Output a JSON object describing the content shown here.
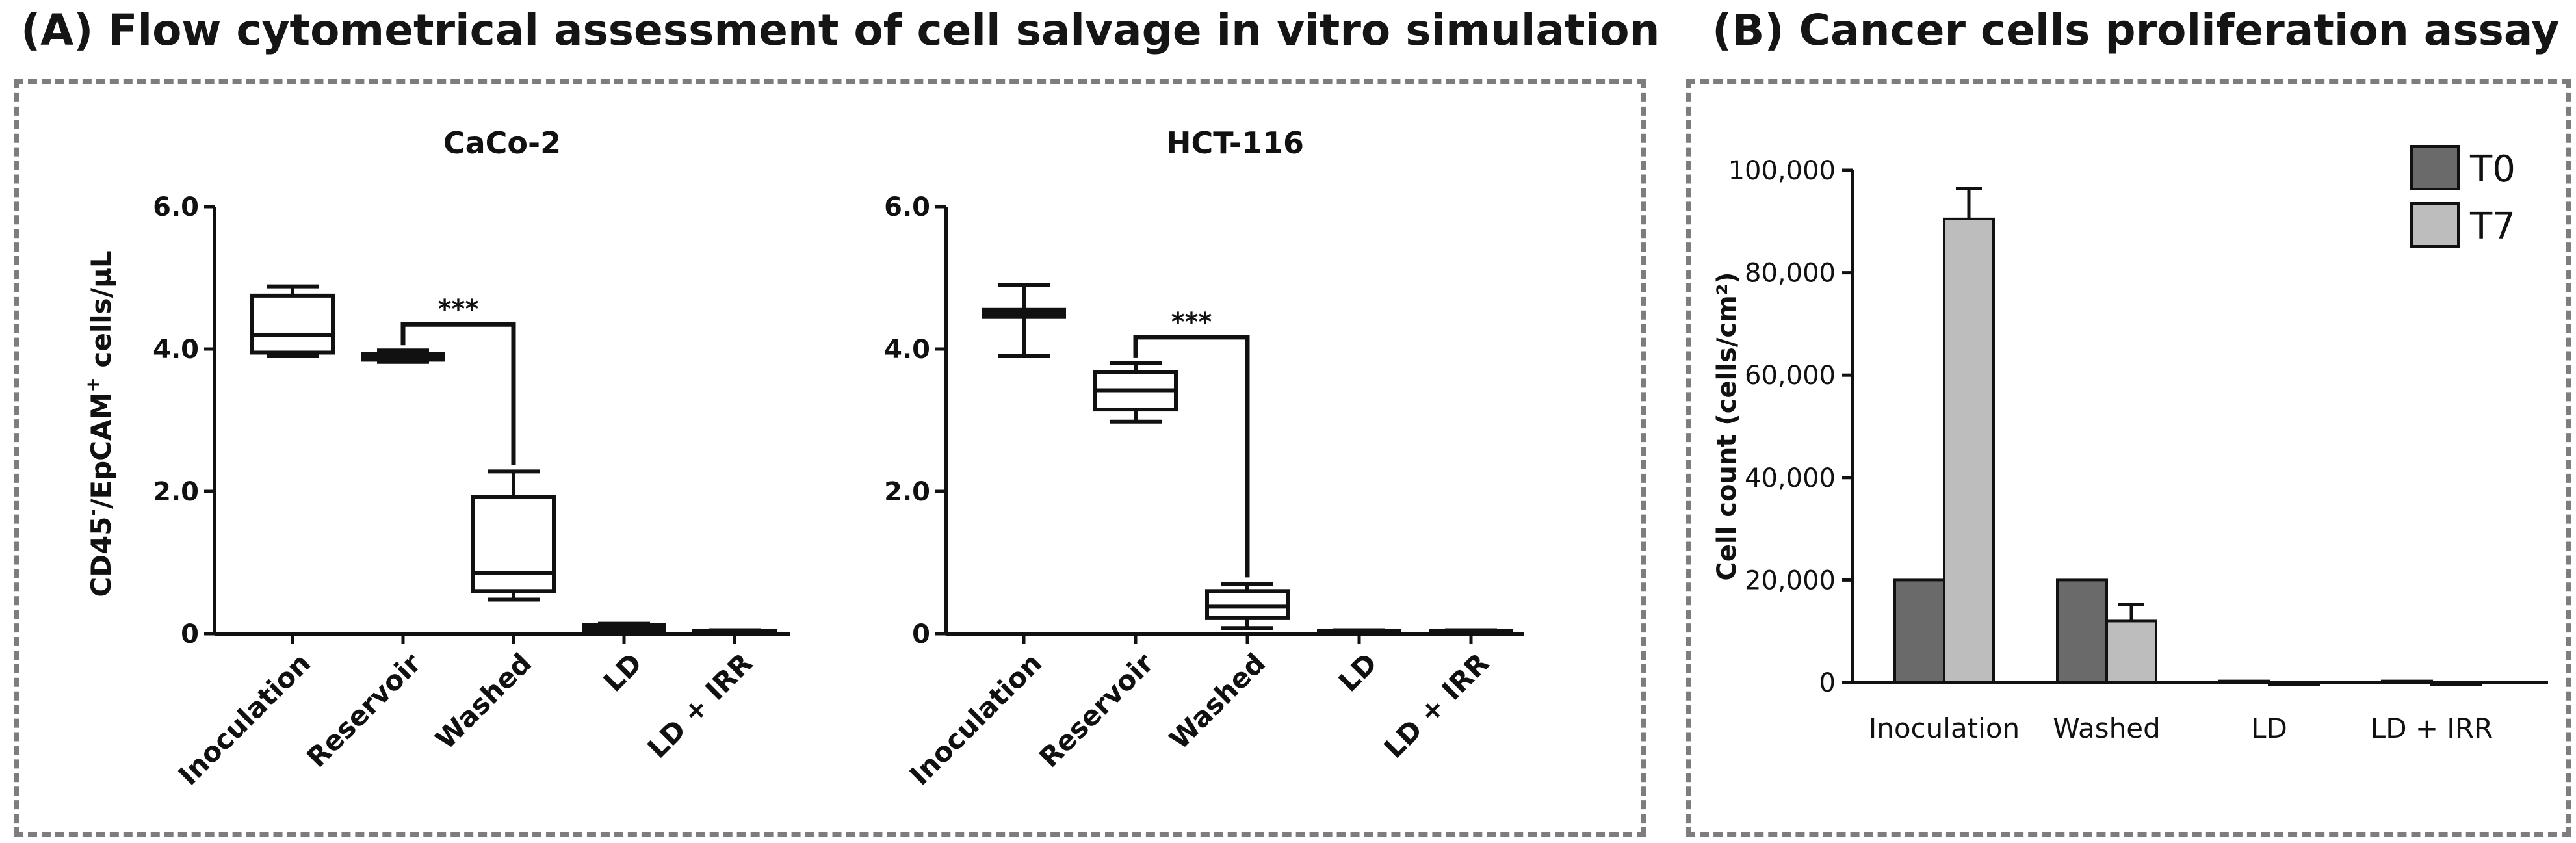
{
  "panel_a": {
    "heading": "(A) Flow cytometrical assessment of cell salvage in vitro simulation",
    "ylabel_parts": [
      "CD45",
      "-",
      "/EpCAM",
      "+",
      " cells/µL"
    ]
  },
  "panel_b": {
    "heading": "(B) Cancer cells proliferation assay"
  },
  "chart_data": [
    {
      "type": "box",
      "title": "CaCo-2",
      "ylabel": "CD45-/EpCAM+ cells/µL",
      "categories": [
        "Inoculation",
        "Reservoir",
        "Washed",
        "LD",
        "LD + IRR"
      ],
      "yticks": [
        "0",
        "2.0",
        "4.0",
        "6.0"
      ],
      "ylim": [
        0,
        6
      ],
      "boxes": [
        {
          "min": 3.9,
          "q1": 3.95,
          "median": 4.2,
          "q3": 4.75,
          "max": 4.88
        },
        {
          "min": 3.82,
          "q1": 3.85,
          "median": 3.9,
          "q3": 3.93,
          "max": 3.98
        },
        {
          "min": 0.48,
          "q1": 0.6,
          "median": 0.85,
          "q3": 1.92,
          "max": 2.28
        },
        {
          "min": 0.02,
          "q1": 0.04,
          "median": 0.07,
          "q3": 0.12,
          "max": 0.14
        },
        {
          "min": 0.0,
          "q1": 0.01,
          "median": 0.02,
          "q3": 0.04,
          "max": 0.05
        }
      ],
      "significance": {
        "from": "Reservoir",
        "to": "Washed",
        "label": "***"
      }
    },
    {
      "type": "box",
      "title": "HCT-116",
      "categories": [
        "Inoculation",
        "Reservoir",
        "Washed",
        "LD",
        "LD + IRR"
      ],
      "yticks": [
        "0",
        "2.0",
        "4.0",
        "6.0"
      ],
      "ylim": [
        0,
        6
      ],
      "boxes": [
        {
          "min": 3.9,
          "q1": 4.45,
          "median": 4.5,
          "q3": 4.55,
          "max": 4.9
        },
        {
          "min": 2.98,
          "q1": 3.15,
          "median": 3.42,
          "q3": 3.68,
          "max": 3.8
        },
        {
          "min": 0.08,
          "q1": 0.22,
          "median": 0.38,
          "q3": 0.6,
          "max": 0.7
        },
        {
          "min": 0.0,
          "q1": 0.01,
          "median": 0.02,
          "q3": 0.04,
          "max": 0.05
        },
        {
          "min": 0.0,
          "q1": 0.01,
          "median": 0.02,
          "q3": 0.04,
          "max": 0.05
        }
      ],
      "significance": {
        "from": "Reservoir",
        "to": "Washed",
        "label": "***"
      }
    },
    {
      "type": "bar",
      "categories": [
        "Inoculation",
        "Washed",
        "LD",
        "LD + IRR"
      ],
      "ylabel": "Cell count (cells/cm²)",
      "yticks": [
        "0",
        "20,000",
        "40,000",
        "60,000",
        "80,000",
        "100,000"
      ],
      "ylim": [
        0,
        100000
      ],
      "series": [
        {
          "name": "T0",
          "color": "#6a6a6a",
          "values": [
            20000,
            20000,
            300,
            300
          ],
          "errors": [
            0,
            0,
            0,
            0
          ]
        },
        {
          "name": "T7",
          "color": "#bdbdbd",
          "values": [
            90500,
            12000,
            0,
            0
          ],
          "errors": [
            6000,
            3200,
            0,
            0
          ]
        }
      ],
      "legend": "top-right"
    }
  ]
}
